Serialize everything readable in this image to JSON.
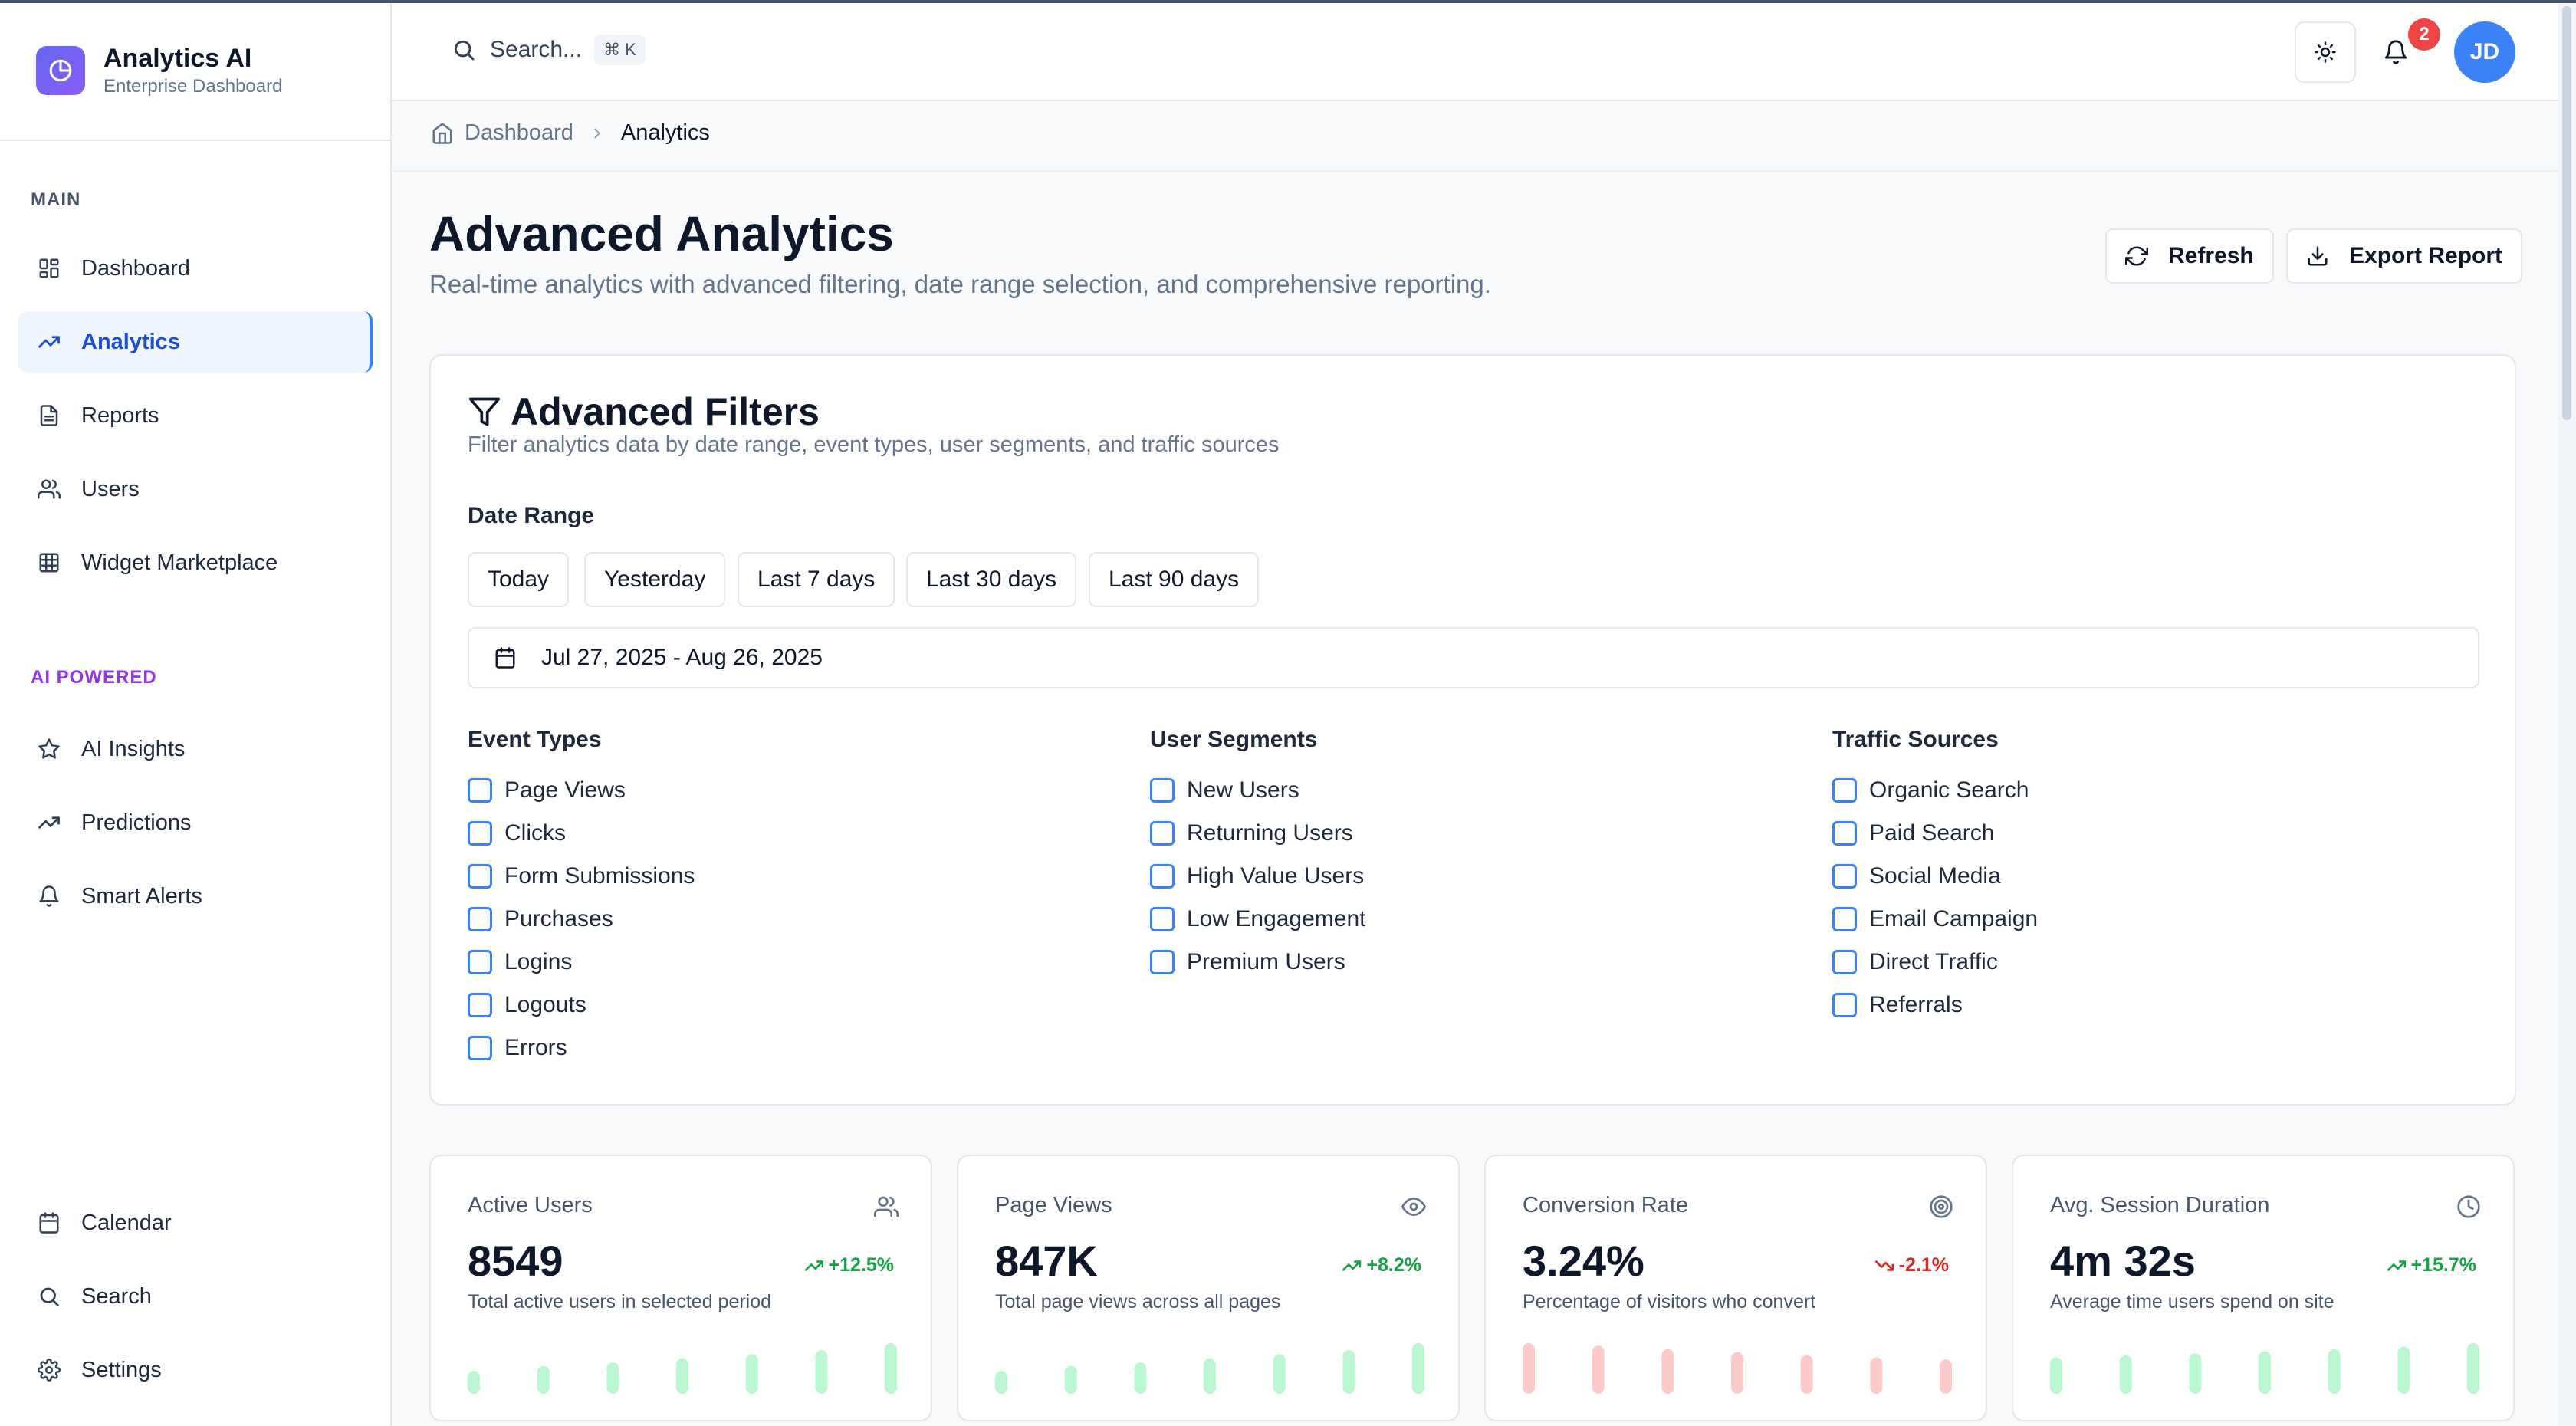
{
  "brand": {
    "title": "Analytics AI",
    "subtitle": "Enterprise Dashboard",
    "color": "#6366f1"
  },
  "sidebar": {
    "main_label": "MAIN",
    "main_items": [
      {
        "label": "Dashboard",
        "icon": "grid-icon"
      },
      {
        "label": "Analytics",
        "icon": "trending-up-icon",
        "active": true
      },
      {
        "label": "Reports",
        "icon": "file-text-icon"
      },
      {
        "label": "Users",
        "icon": "users-icon"
      },
      {
        "label": "Widget Marketplace",
        "icon": "table-grid-icon"
      }
    ],
    "ai_label": "AI POWERED",
    "ai_items": [
      {
        "label": "AI Insights",
        "icon": "star-icon"
      },
      {
        "label": "Predictions",
        "icon": "trending-up-icon"
      },
      {
        "label": "Smart Alerts",
        "icon": "bell-icon"
      }
    ],
    "bottom_items": [
      {
        "label": "Calendar",
        "icon": "calendar-icon"
      },
      {
        "label": "Search",
        "icon": "search-icon"
      },
      {
        "label": "Settings",
        "icon": "gear-icon"
      }
    ]
  },
  "header": {
    "search_label": "Search...",
    "shortcut": "⌘ K",
    "notification_count": "2",
    "avatar_initials": "JD"
  },
  "breadcrumb": {
    "home": "Dashboard",
    "current": "Analytics"
  },
  "page": {
    "title": "Advanced Analytics",
    "subtitle": "Real-time analytics with advanced filtering, date range selection, and comprehensive reporting.",
    "refresh_label": "Refresh",
    "export_label": "Export Report"
  },
  "filters": {
    "title": "Advanced Filters",
    "subtitle": "Filter analytics data by date range, event types, user segments, and traffic sources",
    "date_range_label": "Date Range",
    "date_presets": [
      "Today",
      "Yesterday",
      "Last 7 days",
      "Last 30 days",
      "Last 90 days"
    ],
    "date_value": "Jul 27, 2025 - Aug 26, 2025",
    "event_types_label": "Event Types",
    "event_types": [
      "Page Views",
      "Clicks",
      "Form Submissions",
      "Purchases",
      "Logins",
      "Logouts",
      "Errors"
    ],
    "user_segments_label": "User Segments",
    "user_segments": [
      "New Users",
      "Returning Users",
      "High Value Users",
      "Low Engagement",
      "Premium Users"
    ],
    "traffic_sources_label": "Traffic Sources",
    "traffic_sources": [
      "Organic Search",
      "Paid Search",
      "Social Media",
      "Email Campaign",
      "Direct Traffic",
      "Referrals"
    ]
  },
  "stats": [
    {
      "name": "Active Users",
      "icon": "users-icon",
      "value": "8549",
      "change": "+12.5%",
      "trend": "up",
      "desc": "Total active users in selected period",
      "spark": [
        0.45,
        0.55,
        0.62,
        0.7,
        0.78,
        0.86,
        1.0
      ],
      "spark_color": "#bbf7d0"
    },
    {
      "name": "Page Views",
      "icon": "eye-icon",
      "value": "847K",
      "change": "+8.2%",
      "trend": "up",
      "desc": "Total page views across all pages",
      "spark": [
        0.45,
        0.55,
        0.62,
        0.7,
        0.78,
        0.86,
        1.0
      ],
      "spark_color": "#bbf7d0"
    },
    {
      "name": "Conversion Rate",
      "icon": "target-icon",
      "value": "3.24%",
      "change": "-2.1%",
      "trend": "down",
      "desc": "Percentage of visitors who convert",
      "spark": [
        1.0,
        0.95,
        0.88,
        0.82,
        0.76,
        0.72,
        0.68
      ],
      "spark_color": "#fecaca"
    },
    {
      "name": "Avg. Session Duration",
      "icon": "clock-icon",
      "value": "4m 32s",
      "change": "+15.7%",
      "trend": "up",
      "desc": "Average time users spend on site",
      "spark": [
        0.72,
        0.76,
        0.8,
        0.84,
        0.88,
        0.93,
        1.0
      ],
      "spark_color": "#bbf7d0"
    }
  ],
  "colors": {
    "accent": "#3b82f6",
    "ai_label": "#9333ea",
    "up": "#16a34a",
    "down": "#dc2626"
  }
}
